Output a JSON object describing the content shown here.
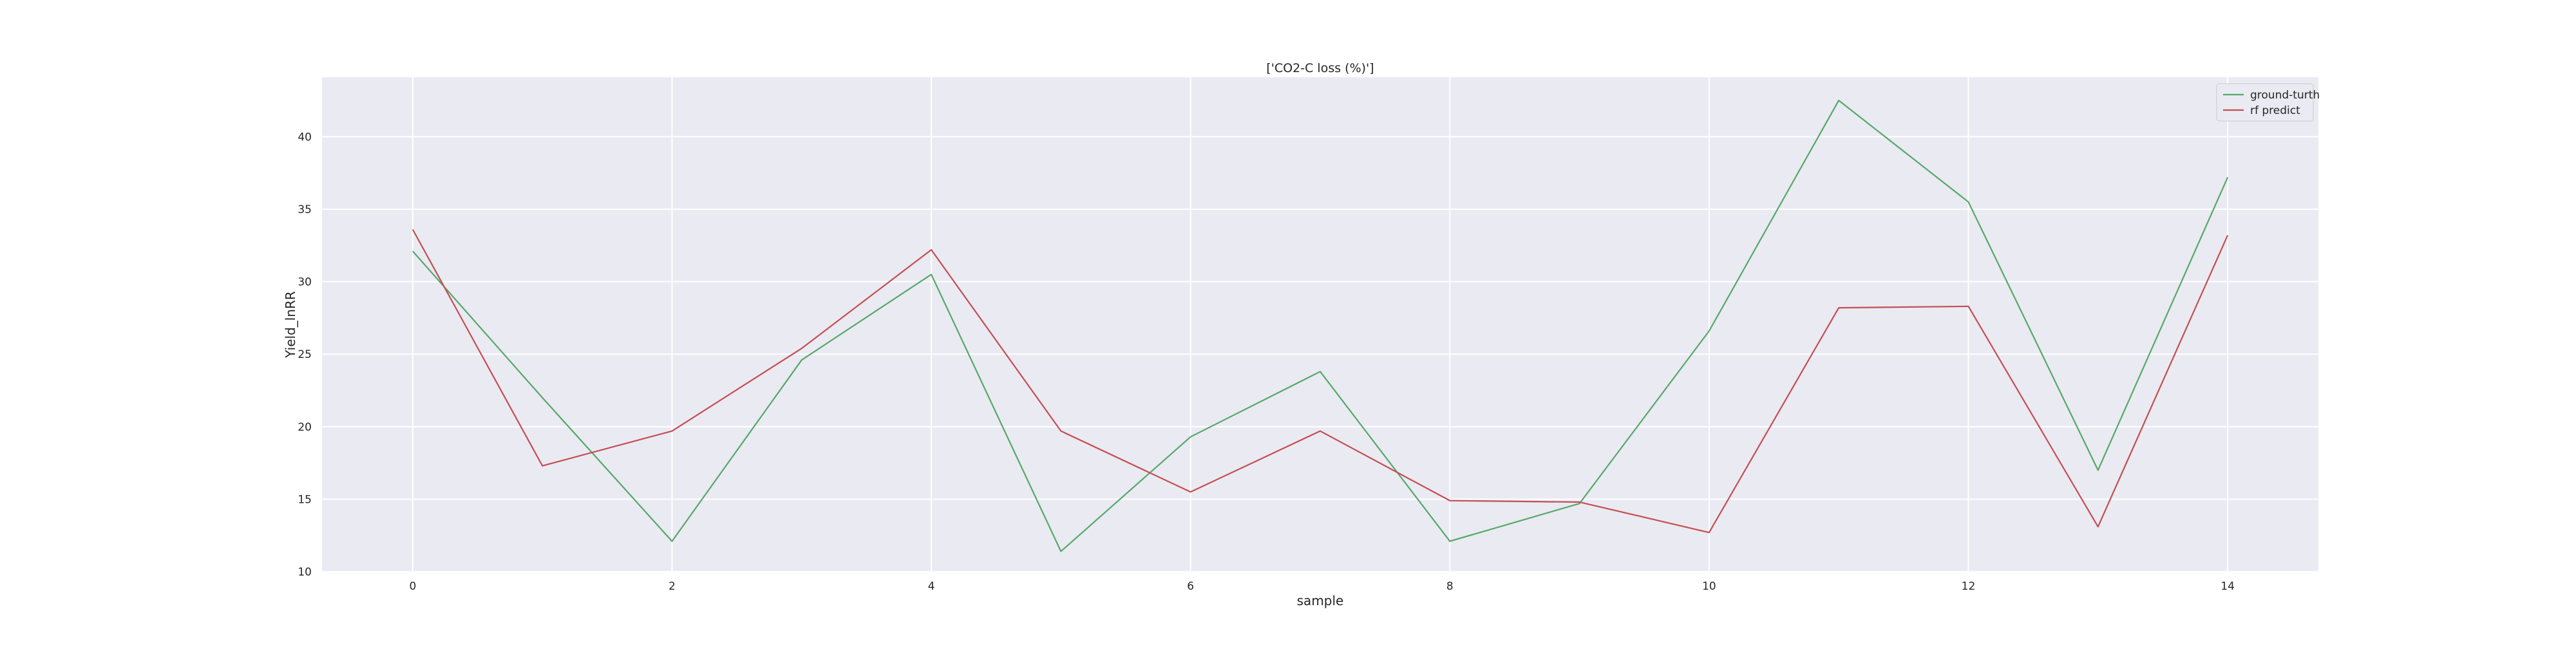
{
  "chart_data": {
    "type": "line",
    "title": "['CO2-C loss (%)']",
    "xlabel": "sample",
    "ylabel": "Yield_lnRR",
    "x": [
      0,
      1,
      2,
      3,
      4,
      5,
      6,
      7,
      8,
      9,
      10,
      11,
      12,
      13,
      14
    ],
    "xticks": [
      0,
      2,
      4,
      6,
      8,
      10,
      12,
      14
    ],
    "yticks": [
      10,
      15,
      20,
      25,
      30,
      35,
      40
    ],
    "xlim": [
      -0.7,
      14.7
    ],
    "ylim": [
      10,
      44.1
    ],
    "grid": true,
    "legend_position": "top-right",
    "background_color": "#eaeaf2",
    "grid_color": "#ffffff",
    "series": [
      {
        "name": "ground-turth",
        "color": "#55a868",
        "values": [
          32.1,
          22.0,
          12.1,
          24.6,
          30.5,
          11.4,
          19.3,
          23.8,
          12.1,
          14.7,
          26.6,
          42.5,
          35.5,
          17.0,
          37.2
        ]
      },
      {
        "name": "rf predict",
        "color": "#c44e52",
        "values": [
          33.6,
          17.3,
          19.7,
          25.4,
          32.2,
          19.7,
          15.5,
          19.7,
          14.9,
          14.8,
          12.7,
          28.2,
          28.3,
          13.1,
          33.2
        ]
      }
    ]
  }
}
